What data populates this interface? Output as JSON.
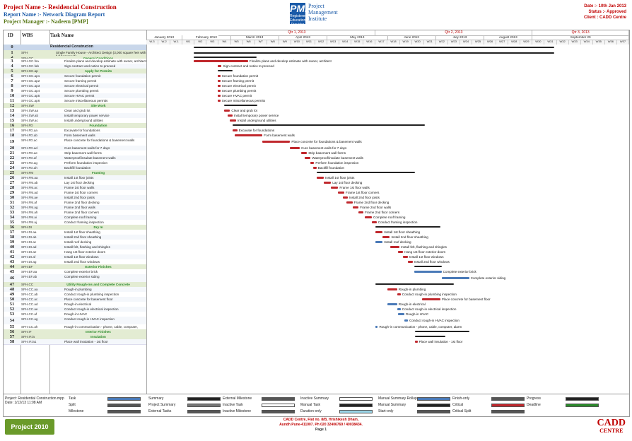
{
  "header": {
    "project_name": "Project Name :- Residencial Construction",
    "report_name": "Report Name :- Network Diagram Report",
    "project_manager": "Project Manager :- Nadeem [PMP]",
    "logo_mark": "PMI",
    "logo_sub": "Registered Education Provider",
    "logo_text": [
      "Project",
      "Management",
      "Institute"
    ],
    "date": "Date :- 10th Jan 2013",
    "status": "Status :- Approved",
    "client": "Client : CADD Centre"
  },
  "columns": {
    "id": "ID",
    "wbs": "WBS",
    "task_name": "Task Name"
  },
  "timeline": {
    "quarters": [
      "Qtr 1, 2013",
      "Qtr 2, 2013",
      "Qtr 3, 2013"
    ],
    "months": [
      "January 2013",
      "February 2013",
      "March 2013",
      "April 2013",
      "May 2013",
      "June 2013",
      "July 2013",
      "August 2013",
      "September 20"
    ],
    "weeks": [
      "W-3",
      "W-2",
      "W-1",
      "W1",
      "W2",
      "W3",
      "W4",
      "W5",
      "W6",
      "W7",
      "W8",
      "W9",
      "W10",
      "W11",
      "W12",
      "W13",
      "W14",
      "W15",
      "W16",
      "W17",
      "W18",
      "W19",
      "W20",
      "W21",
      "W22",
      "W23",
      "W24",
      "W25",
      "W26",
      "W27",
      "W28",
      "W29",
      "W30",
      "W31",
      "W32",
      "W33",
      "W34",
      "W35",
      "W36",
      "W37"
    ]
  },
  "tasks": [
    {
      "id": "0",
      "wbs": "",
      "name": "Residencial Construcion",
      "type": "project"
    },
    {
      "id": "1",
      "wbs": "SFH",
      "name": "Single Family House - Architect Design (3,000 square feet with full basement)",
      "type": "summary"
    },
    {
      "id": "2",
      "wbs": "SFH.GC",
      "name": "General Conditions",
      "type": "summary"
    },
    {
      "id": "3",
      "wbs": "SFH.GC.fsa",
      "name": "Finalize plans and develop estimate with owner, architect",
      "type": "task"
    },
    {
      "id": "4",
      "wbs": "SFH.GC.fab",
      "name": "Sign contract and notice to proceed",
      "type": "task"
    },
    {
      "id": "5",
      "wbs": "SFH.GC.ap",
      "name": "Apply for Permits",
      "type": "summary"
    },
    {
      "id": "6",
      "wbs": "SFH.GC.ap1",
      "name": "Secure foundation permit",
      "type": "task"
    },
    {
      "id": "7",
      "wbs": "SFH.GC.ap2",
      "name": "Secure framing permit",
      "type": "task"
    },
    {
      "id": "8",
      "wbs": "SFH.GC.ap3",
      "name": "Secure electrical permit",
      "type": "task"
    },
    {
      "id": "9",
      "wbs": "SFH.GC.ap4",
      "name": "Secure plumbing permit",
      "type": "task"
    },
    {
      "id": "10",
      "wbs": "SFH.GC.ap5",
      "name": "Secure HVAC permit",
      "type": "task"
    },
    {
      "id": "11",
      "wbs": "SFH.GC.ap6",
      "name": "Secure miscellaneous permits",
      "type": "task"
    },
    {
      "id": "12",
      "wbs": "SFH.SW",
      "name": "Site Work",
      "type": "summary"
    },
    {
      "id": "13",
      "wbs": "SFH.SW.aa",
      "name": "Clear and grub lot",
      "type": "task"
    },
    {
      "id": "14",
      "wbs": "SFH.SW.ab",
      "name": "Install temporary power service",
      "type": "task"
    },
    {
      "id": "15",
      "wbs": "SFH.SW.ac",
      "name": "Install underground utilities",
      "type": "task"
    },
    {
      "id": "16",
      "wbs": "SFH.FD",
      "name": "Foundation",
      "type": "summary"
    },
    {
      "id": "17",
      "wbs": "SFH.FD.aa",
      "name": "Excavate for foundations",
      "type": "task"
    },
    {
      "id": "18",
      "wbs": "SFH.FD.ab",
      "name": "Form basement walls",
      "type": "task"
    },
    {
      "id": "19",
      "wbs": "SFH.FD.ac",
      "name": "Place concrete for foundations & basement walls",
      "type": "task"
    },
    {
      "id": "20",
      "wbs": "SFH.FD.ad",
      "name": "Cure basement walls for 7 days",
      "type": "task"
    },
    {
      "id": "21",
      "wbs": "SFH.FD.ae",
      "name": "Strip basement wall forms",
      "type": "task"
    },
    {
      "id": "22",
      "wbs": "SFH.FD.af",
      "name": "Waterproof/insulate basement walls",
      "type": "task"
    },
    {
      "id": "23",
      "wbs": "SFH.FD.ag",
      "name": "Perform foundation inspection",
      "type": "task"
    },
    {
      "id": "24",
      "wbs": "SFH.FD.ah",
      "name": "Backfill foundation",
      "type": "task"
    },
    {
      "id": "25",
      "wbs": "SFH.FM",
      "name": "Framing",
      "type": "summary"
    },
    {
      "id": "26",
      "wbs": "SFH.FM.aa",
      "name": "Install 1st floor joists",
      "type": "task"
    },
    {
      "id": "27",
      "wbs": "SFH.FM.ab",
      "name": "Lay 1st floor decking",
      "type": "task"
    },
    {
      "id": "28",
      "wbs": "SFH.FM.ac",
      "name": "Frame 1st floor walls",
      "type": "task"
    },
    {
      "id": "29",
      "wbs": "SFH.FM.ad",
      "name": "Frame 1st floor corners",
      "type": "task"
    },
    {
      "id": "30",
      "wbs": "SFH.FM.ae",
      "name": "Install 2nd floor joists",
      "type": "task"
    },
    {
      "id": "31",
      "wbs": "SFH.FM.af",
      "name": "Frame 2nd floor decking",
      "type": "task"
    },
    {
      "id": "32",
      "wbs": "SFH.FM.ag",
      "name": "Frame 2nd floor walls",
      "type": "task"
    },
    {
      "id": "33",
      "wbs": "SFH.FM.ah",
      "name": "Frame 2nd floor corners",
      "type": "task"
    },
    {
      "id": "34",
      "wbs": "SFH.FM.ai",
      "name": "Complete roof framing",
      "type": "task"
    },
    {
      "id": "35",
      "wbs": "SFH.FM.aj",
      "name": "Conduct framing inspection",
      "type": "task"
    },
    {
      "id": "36",
      "wbs": "SFH.DI",
      "name": "Dry In",
      "type": "summary"
    },
    {
      "id": "37",
      "wbs": "SFH.DI.aa",
      "name": "Install 1st floor sheathing",
      "type": "task"
    },
    {
      "id": "38",
      "wbs": "SFH.DI.ab",
      "name": "Install 2nd floor sheathing",
      "type": "task"
    },
    {
      "id": "39",
      "wbs": "SFH.DI.ac",
      "name": "Install roof decking",
      "type": "task"
    },
    {
      "id": "40",
      "wbs": "SFH.DI.ad",
      "name": "Install felt, flashing and shingles",
      "type": "task"
    },
    {
      "id": "41",
      "wbs": "SFH.DI.ae",
      "name": "Hang 1st floor exterior doors",
      "type": "task"
    },
    {
      "id": "42",
      "wbs": "SFH.DI.af",
      "name": "Install 1st floor windows",
      "type": "task"
    },
    {
      "id": "43",
      "wbs": "SFH.DI.ag",
      "name": "Install 2nd floor windows",
      "type": "task"
    },
    {
      "id": "44",
      "wbs": "SFH.EF",
      "name": "Exterior Finishes",
      "type": "summary"
    },
    {
      "id": "45",
      "wbs": "SFH.EF.aa",
      "name": "Complete exterior brick",
      "type": "task"
    },
    {
      "id": "46",
      "wbs": "SFH.EF.ab",
      "name": "Complete exterior siding",
      "type": "task"
    },
    {
      "id": "47",
      "wbs": "SFH.CC",
      "name": "Utility Rough-Ins and Complete Concrete",
      "type": "summary"
    },
    {
      "id": "48",
      "wbs": "SFH.CC.aa",
      "name": "Rough-in plumbing",
      "type": "task"
    },
    {
      "id": "49",
      "wbs": "SFH.CC.ab",
      "name": "Conduct rough-in plumbing inspection",
      "type": "task"
    },
    {
      "id": "50",
      "wbs": "SFH.CC.ac",
      "name": "Place concrete for basement floor",
      "type": "task"
    },
    {
      "id": "51",
      "wbs": "SFH.CC.ad",
      "name": "Rough-in electrical",
      "type": "task"
    },
    {
      "id": "52",
      "wbs": "SFH.CC.ae",
      "name": "Conduct rough-in electrical inspection",
      "type": "task"
    },
    {
      "id": "53",
      "wbs": "SFH.CC.af",
      "name": "Rough-in HVAC",
      "type": "task"
    },
    {
      "id": "54",
      "wbs": "SFH.CC.ag",
      "name": "Conduct rough-in HVAC inspection",
      "type": "task"
    },
    {
      "id": "55",
      "wbs": "SFH.CC.ah",
      "name": "Rough-in communication - phone, cable, computer, alarm",
      "type": "task"
    },
    {
      "id": "56",
      "wbs": "SFH.IF",
      "name": "Interior Finishes",
      "type": "summary"
    },
    {
      "id": "57",
      "wbs": "SFH.IF.ia",
      "name": "Insulation",
      "type": "summary"
    },
    {
      "id": "58",
      "wbs": "SFH.IF.ia1",
      "name": "Place wall insulation - 1st floor",
      "type": "task"
    }
  ],
  "legend": {
    "info": [
      "Project: Residential Construction.mpp",
      "Date: 1/12/13 11:08 AM"
    ],
    "items": [
      [
        "Task",
        "Split",
        "Milestone"
      ],
      [
        "Summary",
        "Project Summary",
        "External Tasks"
      ],
      [
        "External Milestone",
        "Inactive Task",
        "Inactive Milestone"
      ],
      [
        "Inactive Summary",
        "Manual Task",
        "Duration-only"
      ],
      [
        "Manual Summary Rollup",
        "Manual Summary",
        "Start-only"
      ],
      [
        "Finish-only",
        "Critical",
        "Critical Split"
      ],
      [
        "Progress",
        "Deadline"
      ]
    ]
  },
  "footer": {
    "product": "Project 2010",
    "address": [
      "CADD Centre, Flat no. 8/B, Hrishikesh Dham,",
      "Aundh Pune-411007. Ph 020 32406769 / 40038434.",
      "Page 1"
    ],
    "brand": [
      "CADD",
      "CENTRE"
    ]
  },
  "colors": {
    "critical": "#c0282d",
    "normal": "#4a7ab8",
    "summary": "#222222",
    "header_red": "#c00000",
    "header_blue": "#1a5aa8"
  }
}
